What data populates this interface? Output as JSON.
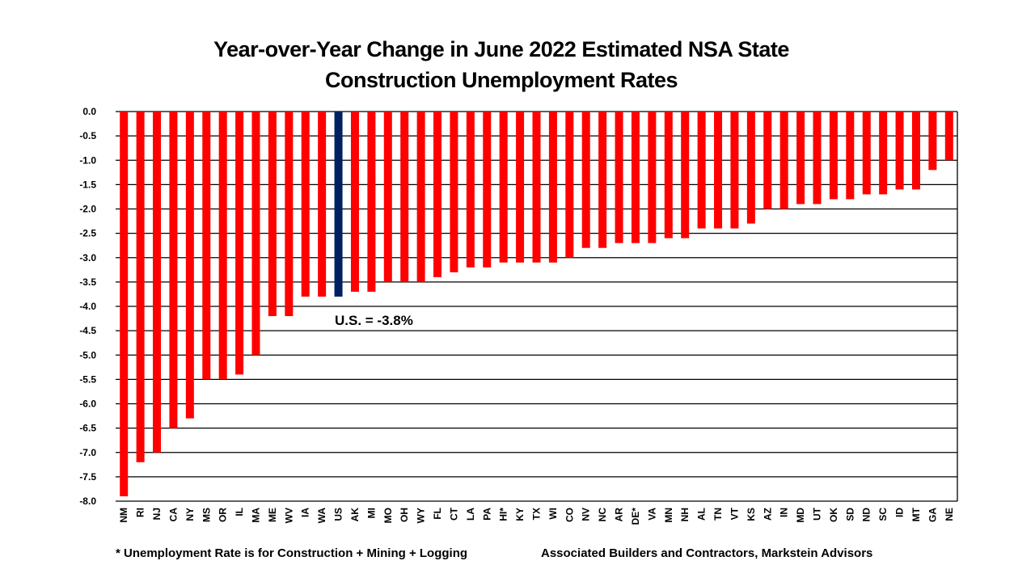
{
  "chart_data": {
    "type": "bar",
    "title_line1": "Year-over-Year Change in June 2022 Estimated NSA State",
    "title_line2": "Construction Unemployment Rates",
    "categories": [
      "NM",
      "RI",
      "NJ",
      "CA",
      "NY",
      "MS",
      "OR",
      "IL",
      "MA",
      "ME",
      "WV",
      "IA",
      "WA",
      "US",
      "AK",
      "MI",
      "MO",
      "OH",
      "WY",
      "FL",
      "CT",
      "LA",
      "PA",
      "HI*",
      "KY",
      "TX",
      "WI",
      "CO",
      "NV",
      "NC",
      "AR",
      "DE*",
      "VA",
      "MN",
      "NH",
      "AL",
      "TN",
      "VT",
      "KS",
      "AZ",
      "IN",
      "MD",
      "UT",
      "OK",
      "SD",
      "ND",
      "SC",
      "ID",
      "MT",
      "GA",
      "NE"
    ],
    "values": [
      -7.9,
      -7.2,
      -7.0,
      -6.5,
      -6.3,
      -5.5,
      -5.5,
      -5.4,
      -5.0,
      -4.2,
      -4.2,
      -3.8,
      -3.8,
      -3.8,
      -3.7,
      -3.7,
      -3.5,
      -3.5,
      -3.5,
      -3.4,
      -3.3,
      -3.2,
      -3.2,
      -3.1,
      -3.1,
      -3.1,
      -3.1,
      -3.0,
      -2.8,
      -2.8,
      -2.7,
      -2.7,
      -2.7,
      -2.6,
      -2.6,
      -2.4,
      -2.4,
      -2.4,
      -2.3,
      -2.0,
      -2.0,
      -1.9,
      -1.9,
      -1.8,
      -1.8,
      -1.7,
      -1.7,
      -1.6,
      -1.6,
      -1.2,
      -1.0
    ],
    "highlight": "US",
    "ylim": [
      -8.0,
      0.0
    ],
    "yticks": [
      "0.0",
      "-0.5",
      "-1.0",
      "-1.5",
      "-2.0",
      "-2.5",
      "-3.0",
      "-3.5",
      "-4.0",
      "-4.5",
      "-5.0",
      "-5.5",
      "-6.0",
      "-6.5",
      "-7.0",
      "-7.5",
      "-8.0"
    ],
    "grid": true,
    "colors": {
      "bar": "#ff0000",
      "highlight": "#002060"
    },
    "annotation": "U.S. = -3.8%"
  },
  "footer": {
    "note": "* Unemployment Rate is for Construction + Mining + Logging",
    "source": "Associated Builders and Contractors, Markstein Advisors"
  }
}
